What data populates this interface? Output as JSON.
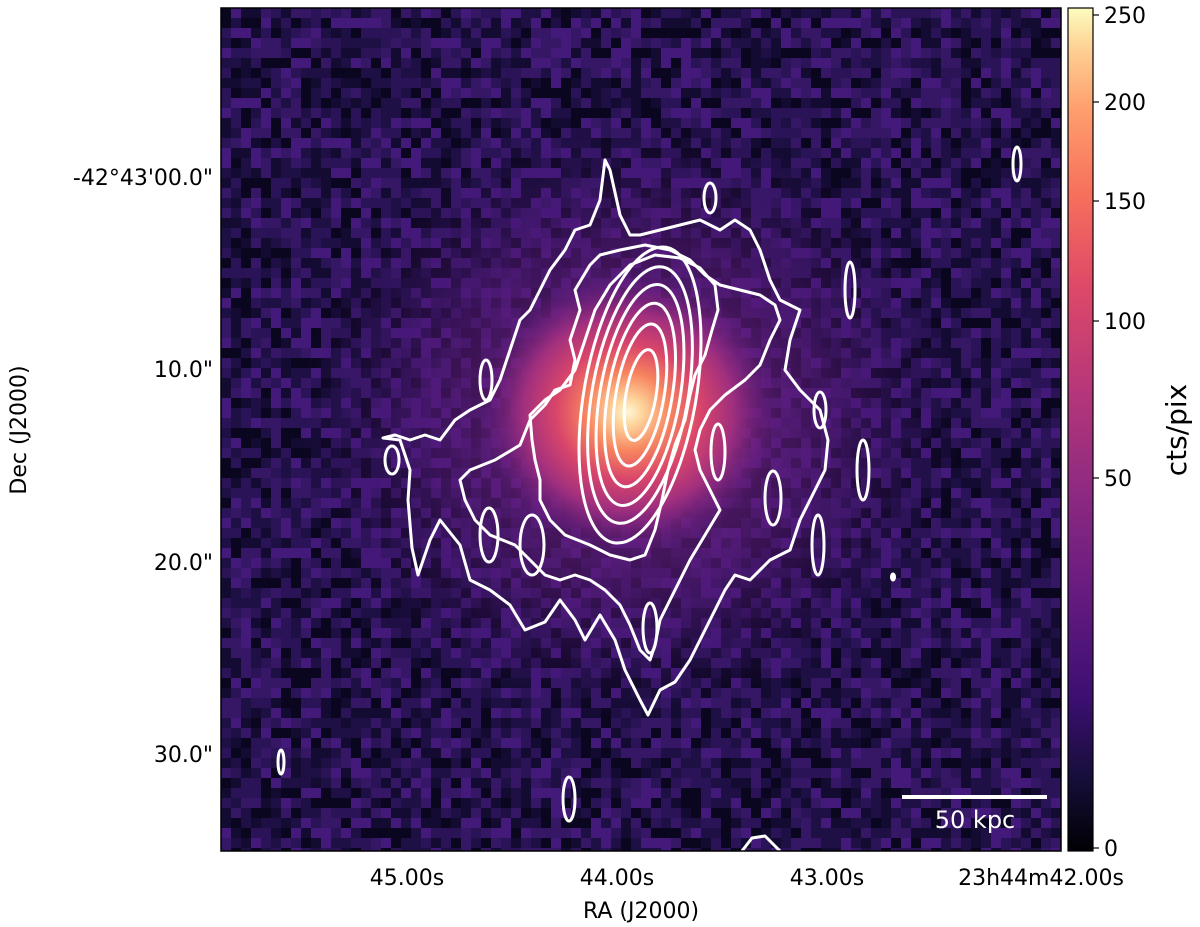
{
  "figure": {
    "x_axis_label": "RA (J2000)",
    "y_axis_label": "Dec (J2000)",
    "x_ticks": [
      "45.00s",
      "44.00s",
      "43.00s",
      "23h44m42.00s"
    ],
    "y_ticks": [
      "-42°43'00.0\"",
      "10.0\"",
      "20.0\"",
      "30.0\""
    ],
    "colormap": "magma",
    "contour_color": "#ffffff",
    "colorbar": {
      "label": "cts/pix",
      "ticks": [
        "0",
        "50",
        "100",
        "150",
        "200",
        "250"
      ],
      "range": [
        0,
        250
      ],
      "scale": "sqrt"
    },
    "scale_bar": {
      "label": "50 kpc"
    }
  }
}
